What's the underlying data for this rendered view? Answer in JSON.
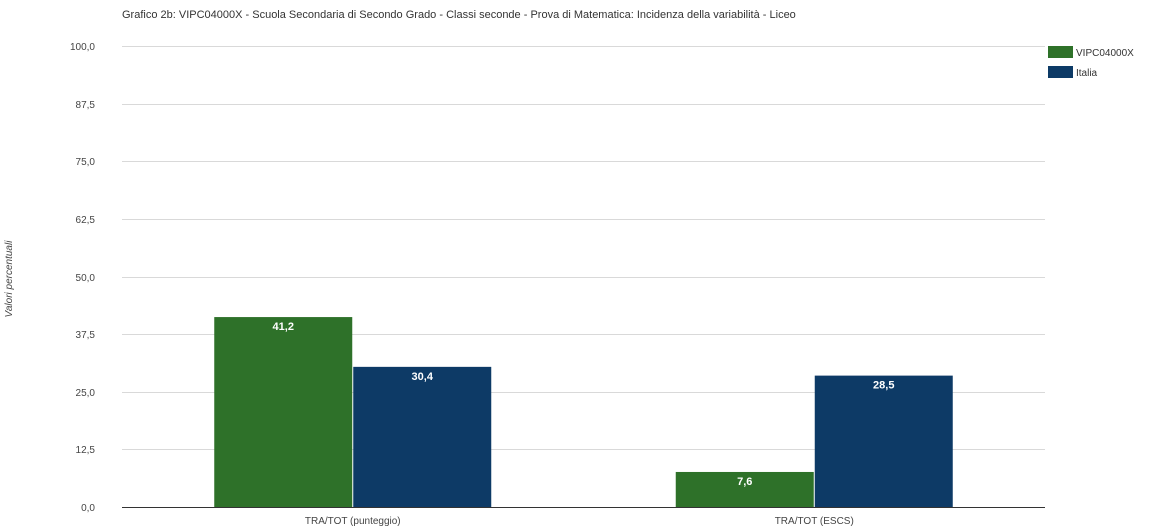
{
  "chart_data": {
    "type": "bar",
    "title": "Grafico 2b: VIPC04000X - Scuola Secondaria di Secondo Grado - Classi seconde - Prova di Matematica: Incidenza della variabilità - Liceo",
    "ylabel": "Valori percentuali",
    "xlabel": "",
    "ylim": [
      0,
      100
    ],
    "yticks": [
      "0,0",
      "12,5",
      "25,0",
      "37,5",
      "50,0",
      "62,5",
      "75,0",
      "87,5",
      "100,0"
    ],
    "categories": [
      "TRA/TOT (punteggio)",
      "TRA/TOT (ESCS)"
    ],
    "series": [
      {
        "name": "VIPC04000X",
        "color": "#2e7129",
        "values": [
          41.2,
          7.6
        ],
        "labels": [
          "41,2",
          "7,6"
        ]
      },
      {
        "name": "Italia",
        "color": "#0d3a66",
        "values": [
          30.4,
          28.5
        ],
        "labels": [
          "30,4",
          "28,5"
        ]
      }
    ],
    "grid": true,
    "legend": "top-right"
  }
}
